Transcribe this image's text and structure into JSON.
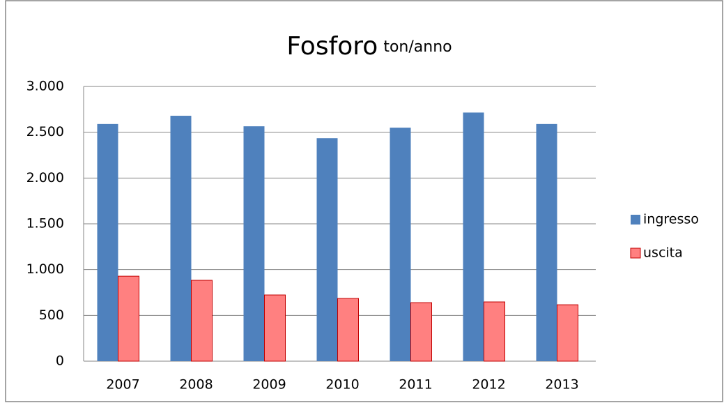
{
  "chart_data": {
    "type": "bar",
    "title": "Fosforo",
    "title_unit": "ton/anno",
    "categories": [
      "2007",
      "2008",
      "2009",
      "2010",
      "2011",
      "2012",
      "2013"
    ],
    "series": [
      {
        "name": "ingresso",
        "color": "#4f81bd",
        "values": [
          2590,
          2680,
          2565,
          2435,
          2550,
          2715,
          2590
        ]
      },
      {
        "name": "uscita",
        "color": "#ff8080",
        "values": [
          928,
          883,
          723,
          685,
          639,
          647,
          616
        ]
      }
    ],
    "ylim": [
      0,
      3000
    ],
    "yticks": [
      0,
      500,
      {
        "value": 1000,
        "label": "1.000"
      },
      {
        "value": 1500,
        "label": "1.500"
      },
      {
        "value": 2000,
        "label": "2.000"
      },
      {
        "value": 2500,
        "label": "2.500"
      },
      {
        "value": 3000,
        "label": "3.000"
      }
    ],
    "grid": true,
    "legend": "right"
  }
}
